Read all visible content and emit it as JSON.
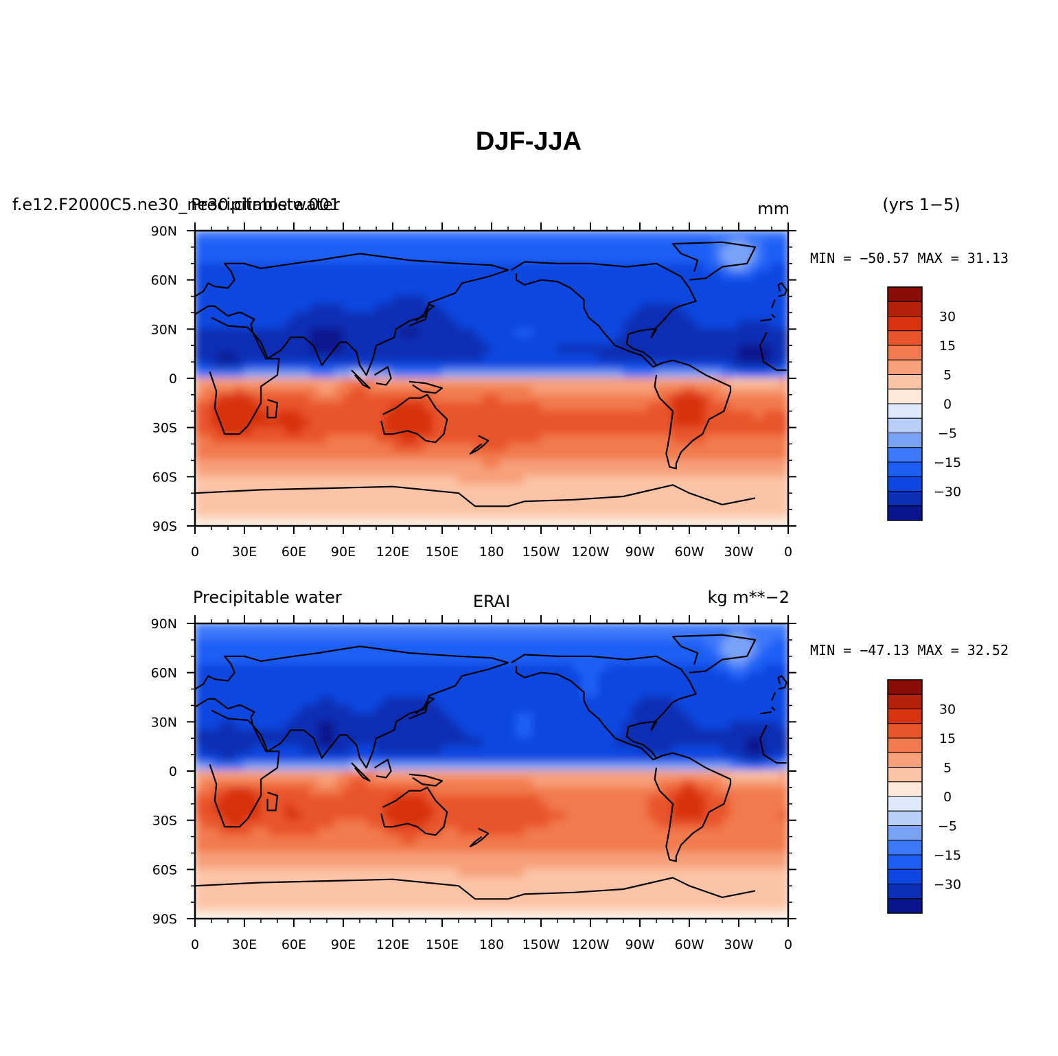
{
  "figure": {
    "title": "DJF-JJA"
  },
  "colors": {
    "levels_palette": [
      "#08158c",
      "#0a2fb4",
      "#0d46e0",
      "#1f5ef5",
      "#3d78fa",
      "#7aa3f7",
      "#b9cffa",
      "#deeafc",
      "#fde8d9",
      "#fcc4a6",
      "#f7a07a",
      "#f27a4e",
      "#e9552b",
      "#d8320f",
      "#b3200c",
      "#8a0c06"
    ],
    "coast": "#000000"
  },
  "panels": [
    {
      "left_label": "f.e12.F2000C5.ne30_ne30.climoste.001",
      "left_label_overlay": "Precipitable water",
      "center_label": "",
      "right_label": "mm",
      "extra_label": "(yrs 1−5)",
      "stats": "MIN = −50.57 MAX =  31.13",
      "colorbar_labels": [
        "30",
        "15",
        "5",
        "0",
        "−5",
        "−15",
        "−30"
      ]
    },
    {
      "left_label": "Precipitable water",
      "center_label": "ERAI",
      "right_label": "kg m**−2",
      "stats": "MIN = −47.13 MAX =  32.52",
      "colorbar_labels": [
        "30",
        "15",
        "5",
        "0",
        "−5",
        "−15",
        "−30"
      ]
    }
  ],
  "axes": {
    "lon_ticks": [
      "0",
      "30E",
      "60E",
      "90E",
      "120E",
      "150E",
      "180",
      "150W",
      "120W",
      "90W",
      "60W",
      "30W",
      "0"
    ],
    "lat_ticks": [
      "90N",
      "60N",
      "30N",
      "0",
      "30S",
      "60S",
      "90S"
    ]
  },
  "chart_data": [
    {
      "type": "heatmap",
      "title": "Precipitable water",
      "subtitle": "f.e12.F2000C5.ne30_ne30.climoste.001 (yrs 1−5)",
      "units": "mm",
      "projection": "cylindrical equidistant",
      "x_range": [
        0,
        360
      ],
      "y_range": [
        -90,
        90
      ],
      "min": -50.57,
      "max": 31.13,
      "contour_levels": [
        -40,
        -30,
        -20,
        -15,
        -10,
        -5,
        -2,
        0,
        2,
        5,
        10,
        15,
        20,
        30,
        35
      ],
      "zonal_profile_lat": [
        90,
        75,
        60,
        45,
        30,
        15,
        5,
        0,
        -15,
        -30,
        -45,
        -60,
        -75,
        -90
      ],
      "zonal_profile_value": [
        -14,
        -18,
        -24,
        -28,
        -30,
        -33,
        -24,
        4,
        14,
        16,
        12,
        5,
        3,
        1
      ]
    },
    {
      "type": "heatmap",
      "title": "Precipitable water",
      "subtitle": "ERAI",
      "units": "kg m**−2",
      "projection": "cylindrical equidistant",
      "x_range": [
        0,
        360
      ],
      "y_range": [
        -90,
        90
      ],
      "min": -47.13,
      "max": 32.52,
      "contour_levels": [
        -40,
        -30,
        -20,
        -15,
        -10,
        -5,
        -2,
        0,
        2,
        5,
        10,
        15,
        20,
        30,
        35
      ],
      "zonal_profile_lat": [
        90,
        75,
        60,
        45,
        30,
        15,
        5,
        0,
        -15,
        -30,
        -45,
        -60,
        -75,
        -90
      ],
      "zonal_profile_value": [
        -12,
        -17,
        -22,
        -27,
        -29,
        -31,
        -22,
        4,
        14,
        15,
        11,
        5,
        3,
        1
      ]
    }
  ]
}
